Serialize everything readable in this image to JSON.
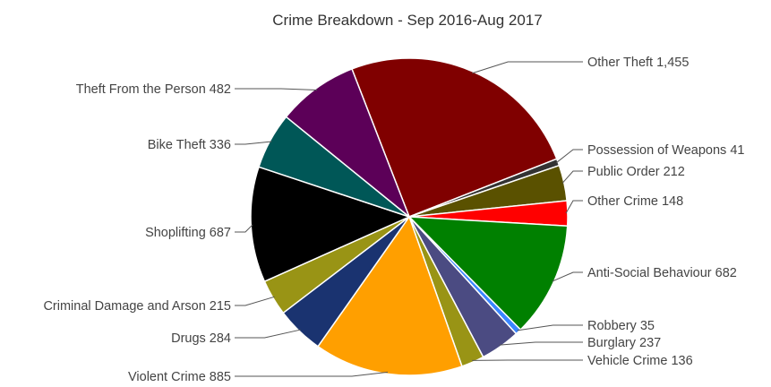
{
  "chart_data": {
    "type": "pie",
    "title": "Crime Breakdown - Sep 2016-Aug 2017",
    "slices": [
      {
        "name": "Other Theft",
        "value": 1455,
        "display_value": "1,455",
        "color": "#800000"
      },
      {
        "name": "Possession of Weapons",
        "value": 41,
        "display_value": "41",
        "color": "#333333"
      },
      {
        "name": "Public Order",
        "value": 212,
        "display_value": "212",
        "color": "#5a5100"
      },
      {
        "name": "Other Crime",
        "value": 148,
        "display_value": "148",
        "color": "#ff0000"
      },
      {
        "name": "Anti-Social Behaviour",
        "value": 682,
        "display_value": "682",
        "color": "#008000"
      },
      {
        "name": "Robbery",
        "value": 35,
        "display_value": "35",
        "color": "#3a86ff"
      },
      {
        "name": "Burglary",
        "value": 237,
        "display_value": "237",
        "color": "#4b4b82"
      },
      {
        "name": "Vehicle Crime",
        "value": 136,
        "display_value": "136",
        "color": "#999415"
      },
      {
        "name": "Violent Crime",
        "value": 885,
        "display_value": "885",
        "color": "#ff9f00"
      },
      {
        "name": "Drugs",
        "value": 284,
        "display_value": "284",
        "color": "#1a3370"
      },
      {
        "name": "Criminal Damage and Arson",
        "value": 215,
        "display_value": "215",
        "color": "#999415"
      },
      {
        "name": "Shoplifting",
        "value": 687,
        "display_value": "687",
        "color": "#000000"
      },
      {
        "name": "Bike Theft",
        "value": 336,
        "display_value": "336",
        "color": "#005757"
      },
      {
        "name": "Theft From the Person",
        "value": 482,
        "display_value": "482",
        "color": "#5c0058"
      }
    ]
  }
}
